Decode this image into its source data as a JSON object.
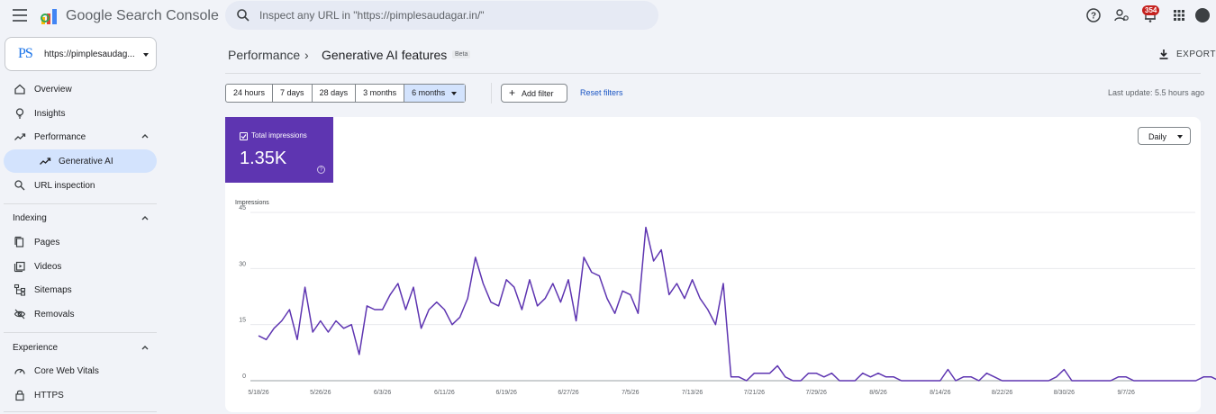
{
  "app": {
    "title": "Google Search Console"
  },
  "search": {
    "placeholder": "Inspect any URL in \"https://pimplesaudagar.in/\""
  },
  "notifications": {
    "count": "354"
  },
  "property": {
    "initials": "PS",
    "url": "https://pimplesaudag..."
  },
  "sidebar": {
    "overview": "Overview",
    "insights": "Insights",
    "performance": "Performance",
    "generative_ai": "Generative AI",
    "url_inspection": "URL inspection",
    "indexing": "Indexing",
    "pages": "Pages",
    "videos": "Videos",
    "sitemaps": "Sitemaps",
    "removals": "Removals",
    "experience": "Experience",
    "core_web_vitals": "Core Web Vitals",
    "https": "HTTPS"
  },
  "header": {
    "crumb1": "Performance",
    "crumb2": "Generative AI features",
    "badge": "Beta",
    "export": "EXPORT"
  },
  "filters": {
    "ranges": [
      "24 hours",
      "7 days",
      "28 days",
      "3 months",
      "6 months"
    ],
    "selected": "6 months",
    "add_filter": "Add filter",
    "reset": "Reset filters",
    "last_update": "Last update: 5.5 hours ago"
  },
  "metric": {
    "label": "Total impressions",
    "value": "1.35K"
  },
  "granularity": "Daily",
  "colors": {
    "series": "#5e35b1",
    "accent": "#1a73e8"
  },
  "chart_data": {
    "type": "line",
    "ylabel": "Impressions",
    "ylim": [
      0,
      45
    ],
    "yticks": [
      0,
      15,
      30,
      45
    ],
    "xtick_labels": [
      "5/18/26",
      "5/26/26",
      "6/3/26",
      "6/11/26",
      "6/19/26",
      "6/27/26",
      "7/5/26",
      "7/13/26",
      "7/21/26",
      "7/29/26",
      "8/6/26",
      "8/14/26",
      "8/22/26",
      "8/30/26",
      "9/7/26"
    ],
    "start_date": "5/18/26",
    "series": [
      {
        "values": [
          12,
          11,
          14,
          16,
          19,
          11,
          25,
          13,
          16,
          13,
          16,
          14,
          15,
          7,
          20,
          19,
          19,
          23,
          26,
          19,
          25,
          14,
          19,
          21,
          19,
          15,
          17,
          22,
          33,
          26,
          21,
          20,
          27,
          25,
          19,
          27,
          20,
          22,
          26,
          21,
          27,
          16,
          33,
          29,
          28,
          22,
          18,
          24,
          23,
          18,
          41,
          32,
          35,
          23,
          26,
          22,
          27,
          22,
          19,
          15,
          26,
          1,
          1,
          0,
          2,
          2,
          2,
          4,
          1,
          0,
          0,
          2,
          2,
          1,
          2,
          0,
          0,
          0,
          2,
          1,
          2,
          1,
          1,
          0,
          0,
          0,
          0,
          0,
          0,
          3,
          0,
          1,
          1,
          0,
          2,
          1,
          0,
          0,
          0,
          0,
          0,
          0,
          0,
          1,
          3,
          0,
          0,
          0,
          0,
          0,
          0,
          1,
          1,
          0,
          0,
          0,
          0,
          0,
          0,
          0,
          0,
          0,
          1,
          1,
          0
        ]
      }
    ]
  }
}
